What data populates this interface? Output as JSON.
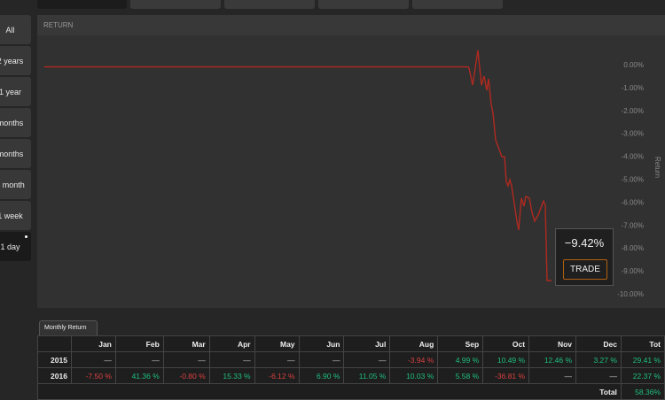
{
  "sidebar": {
    "items": [
      {
        "label": "All"
      },
      {
        "label": "2 years"
      },
      {
        "label": "1 year"
      },
      {
        "label": "months"
      },
      {
        "label": "months"
      },
      {
        "label": "1 month"
      },
      {
        "label": "1 week"
      },
      {
        "label": "1 day",
        "active": true
      }
    ]
  },
  "panel": {
    "title": "RETURN"
  },
  "tooltip": {
    "value": "−9.42%",
    "button": "TRADE"
  },
  "chart_data": {
    "type": "line",
    "title": "RETURN",
    "ylabel": "Return",
    "ylim": [
      -10,
      0.5
    ],
    "yticks": [
      "0.00%",
      "-1.00%",
      "-2.00%",
      "-3.00%",
      "-4.00%",
      "-5.00%",
      "-6.00%",
      "-7.00%",
      "-8.00%",
      "-9.00%",
      "-10.00%"
    ],
    "color": "#b02a20",
    "values": [
      -0.1,
      -0.1,
      -0.15,
      -0.89,
      0.62,
      -0.89,
      -0.5,
      -1.12,
      -0.62,
      -1.74,
      -2.12,
      -3.28,
      -4.02,
      -4.02,
      -5.1,
      -5.29,
      -5.02,
      -5.29,
      -6.83,
      -7.22,
      -5.83,
      -6.18,
      -5.75,
      -5.83,
      -6.45,
      -6.83,
      -6.56,
      -5.95,
      -6.14,
      -9.42,
      -9.42
    ]
  },
  "monthly": {
    "tab": "Monthly Return",
    "headers": [
      "",
      "Jan",
      "Feb",
      "Mar",
      "Apr",
      "May",
      "Jun",
      "Jul",
      "Aug",
      "Sep",
      "Oct",
      "Nov",
      "Dec",
      "Tot"
    ],
    "rows": [
      [
        "2015",
        "—",
        "—",
        "—",
        "—",
        "—",
        "—",
        "—",
        "-3.94 %",
        "4.99 %",
        "10.49 %",
        "12.46 %",
        "3.27 %",
        "29.41 %"
      ],
      [
        "2016",
        "-7.50 %",
        "41.36 %",
        "-0.80 %",
        "15.33 %",
        "-6.12 %",
        "6.90 %",
        "11.05 %",
        "10.03 %",
        "5.58 %",
        "-36.81 %",
        "—",
        "—",
        "22.37 %"
      ]
    ],
    "total_label": "Total",
    "total_value": "58.36%",
    "colors": {
      "positive": "#1fbf7f",
      "negative": "#d94040"
    }
  }
}
